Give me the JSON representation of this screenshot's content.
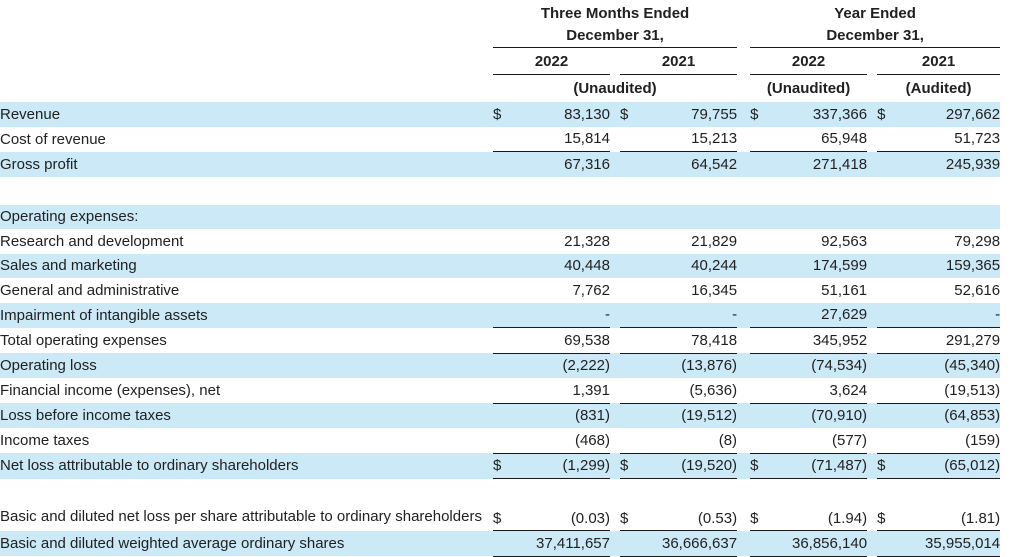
{
  "colors": {
    "row_highlight": "#cce9f8",
    "rule_line": "#1a1a1a",
    "text": "#212121"
  },
  "header": {
    "groups": [
      {
        "title": "Three Months Ended",
        "date": "December 31,",
        "years": [
          "2022",
          "2021"
        ],
        "audit": [
          "(Unaudited)"
        ]
      },
      {
        "title": "Year Ended",
        "date": "December 31,",
        "years": [
          "2022",
          "2021"
        ],
        "audit": [
          "(Unaudited)",
          "(Audited)"
        ]
      }
    ]
  },
  "currency_symbol": "$",
  "rows": [
    {
      "type": "data",
      "label": "Revenue",
      "currency": true,
      "shaded": true,
      "underline": false,
      "values": [
        "83,130",
        "79,755",
        "337,366",
        "297,662"
      ]
    },
    {
      "type": "data",
      "label": "Cost of revenue",
      "currency": false,
      "shaded": false,
      "underline": true,
      "values": [
        "15,814",
        "15,213",
        "65,948",
        "51,723"
      ]
    },
    {
      "type": "data",
      "label": "Gross profit",
      "currency": false,
      "shaded": true,
      "underline": false,
      "values": [
        "67,316",
        "64,542",
        "271,418",
        "245,939"
      ]
    },
    {
      "type": "spacer"
    },
    {
      "type": "section",
      "label": "Operating expenses:",
      "currency": false,
      "shaded": true,
      "underline": false,
      "values": []
    },
    {
      "type": "data",
      "label": "Research and development",
      "currency": false,
      "shaded": false,
      "underline": false,
      "values": [
        "21,328",
        "21,829",
        "92,563",
        "79,298"
      ]
    },
    {
      "type": "data",
      "label": "Sales and marketing",
      "currency": false,
      "shaded": true,
      "underline": false,
      "values": [
        "40,448",
        "40,244",
        "174,599",
        "159,365"
      ]
    },
    {
      "type": "data",
      "label": "General and administrative",
      "currency": false,
      "shaded": false,
      "underline": false,
      "values": [
        "7,762",
        "16,345",
        "51,161",
        "52,616"
      ]
    },
    {
      "type": "data",
      "label": "Impairment of intangible assets",
      "currency": false,
      "shaded": true,
      "underline": true,
      "values": [
        "-",
        "-",
        "27,629",
        "-"
      ]
    },
    {
      "type": "data",
      "label": "Total operating expenses",
      "currency": false,
      "shaded": false,
      "underline": true,
      "values": [
        "69,538",
        "78,418",
        "345,952",
        "291,279"
      ]
    },
    {
      "type": "data",
      "label": "Operating loss",
      "currency": false,
      "shaded": true,
      "underline": false,
      "values": [
        "(2,222)",
        "(13,876)",
        "(74,534)",
        "(45,340)"
      ]
    },
    {
      "type": "data",
      "label": "Financial income (expenses), net",
      "currency": false,
      "shaded": false,
      "underline": true,
      "values": [
        "1,391",
        "(5,636)",
        "3,624",
        "(19,513)"
      ]
    },
    {
      "type": "data",
      "label": "Loss before income taxes",
      "currency": false,
      "shaded": true,
      "underline": false,
      "values": [
        "(831)",
        "(19,512)",
        "(70,910)",
        "(64,853)"
      ]
    },
    {
      "type": "data",
      "label": "Income taxes",
      "currency": false,
      "shaded": false,
      "underline": true,
      "values": [
        "(468)",
        "(8)",
        "(577)",
        "(159)"
      ]
    },
    {
      "type": "data",
      "label": "Net loss attributable to ordinary shareholders",
      "currency": true,
      "shaded": true,
      "underline": true,
      "values": [
        "(1,299)",
        "(19,520)",
        "(71,487)",
        "(65,012)"
      ]
    },
    {
      "type": "data",
      "label": "Basic and diluted net loss per share attributable to ordinary shareholders",
      "currency": true,
      "shaded": false,
      "underline": true,
      "tall": true,
      "values": [
        "(0.03)",
        "(0.53)",
        "(1.94)",
        "(1.81)"
      ]
    },
    {
      "type": "data",
      "label": "Basic and diluted weighted average ordinary shares",
      "currency": false,
      "shaded": true,
      "underline": true,
      "values": [
        "37,411,657",
        "36,666,637",
        "36,856,140",
        "35,955,014"
      ]
    }
  ]
}
